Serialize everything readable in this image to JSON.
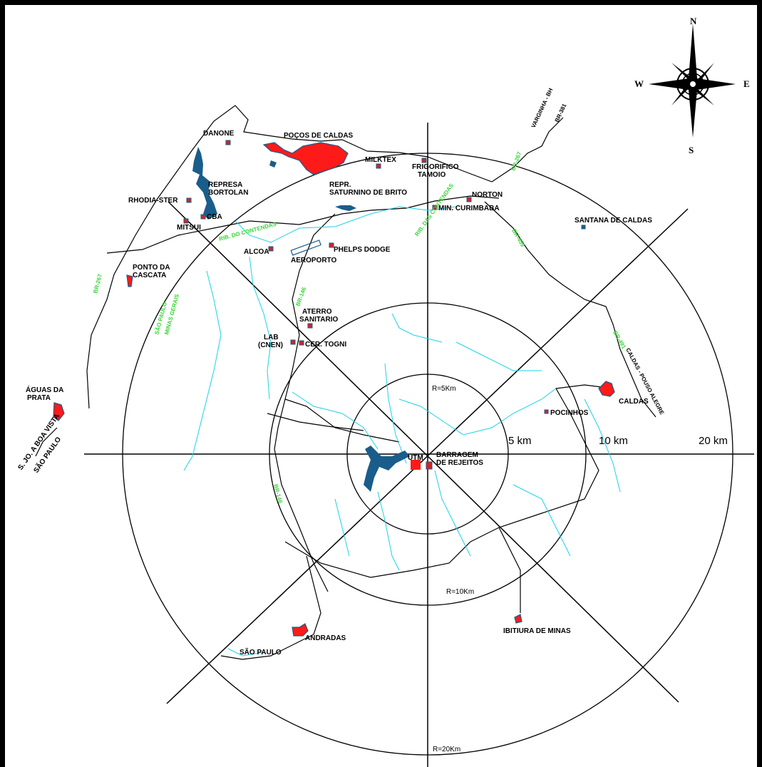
{
  "colors": {
    "border": "#000000",
    "road": "#000000",
    "river": "#1ad2ea",
    "lake": "#1a5d8a",
    "urban": "#ff1a1a",
    "site": "#d42222",
    "highway_label": "#39d639"
  },
  "compass": {
    "n": "N",
    "s": "S",
    "e": "E",
    "w": "W"
  },
  "rings": {
    "r5": "R=5Km",
    "r10": "R=10Km",
    "r20": "R=20Km"
  },
  "scale": {
    "s5": "5 km",
    "s10": "10 km",
    "s20": "20 km"
  },
  "places": {
    "danone": "DANONE",
    "pocos": "POÇOS DE CALDAS",
    "milktex": "MILKTEX",
    "frigo1": "FRIGORIFICO",
    "frigo2": "TAMOIO",
    "repr1": "REPR.",
    "repr2": "SATURNINO DE BRITO",
    "norton": "NORTON",
    "min": "MIN. CURIMBABA",
    "santana": "SANTANA DE CALDAS",
    "represa1": "REPRESA",
    "represa2": "BORTOLAN",
    "rhodia": "RHODIA-STER",
    "cba": "CBA",
    "mitsui": "MITSUI",
    "alcoa": "ALCOA",
    "phelps": "PHELPS DODGE",
    "aeroporto": "AEROPORTO",
    "ponto1": "PONTO DA",
    "ponto2": "CASCATA",
    "aterro1": "ATERRO",
    "aterro2": "SANITARIO",
    "lab1": "LAB",
    "lab2": "(CNEN)",
    "cer": "CER. TOGNI",
    "aguas1": "ÁGUAS DA",
    "aguas2": "PRATA",
    "sjbv": "S. JO. A BOA VISTA",
    "sjbv_sp": "SÃO PAULO",
    "caldas": "CALDAS",
    "pocinhos": "POCINHOS",
    "utm": "UTM",
    "barragem1": "BARRAGEM",
    "barragem2": "DE REJEITOS",
    "andradas": "ANDRADAS",
    "saopaulo": "SÃO PAULO",
    "ibitiura": "IBITIURA DE MINAS"
  },
  "roads": {
    "br267a": "BR-267",
    "br267b": "BR-267",
    "br459": "BR-459",
    "br146a": "BR-146",
    "br146b": "BR-146",
    "br491": "BR-491",
    "vargin1": "VARGINHA - BH",
    "vargin2": "BR-381",
    "caldas_pa": "CALDAS - POUSO ALEGRE",
    "spmg1": "SÃO PAULO",
    "spmg2": "MINAS GERAIS",
    "rib_cont": "RIB. DO CONTENDAS",
    "rib_cont2": "RIB. DAS CONTENDAS"
  }
}
